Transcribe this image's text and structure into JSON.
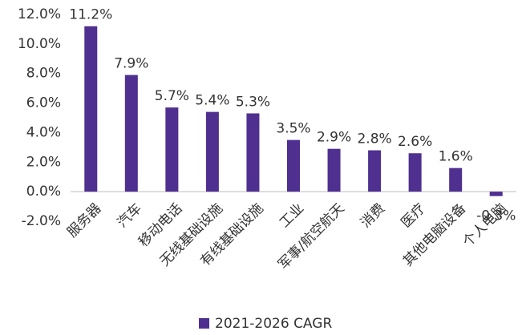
{
  "chart_data": {
    "type": "bar",
    "categories": [
      "服务器",
      "汽车",
      "移动电话",
      "无线基础设施",
      "有线基础设施",
      "工业",
      "军事/航空航天",
      "消费",
      "医疗",
      "其他电脑设备",
      "个人电脑"
    ],
    "series": [
      {
        "name": "2021-2026 CAGR",
        "color": "#4f2f8f",
        "values": [
          11.2,
          7.9,
          5.7,
          5.4,
          5.3,
          3.5,
          2.9,
          2.8,
          2.6,
          1.6,
          -0.3
        ],
        "value_labels": [
          "11.2%",
          "7.9%",
          "5.7%",
          "5.4%",
          "5.3%",
          "3.5%",
          "2.9%",
          "2.8%",
          "2.6%",
          "1.6%",
          "-0.3%"
        ]
      }
    ],
    "ylim": [
      -2,
      12
    ],
    "yticks": [
      {
        "value": -2,
        "label": "-2.0%"
      },
      {
        "value": 0,
        "label": "0.0%"
      },
      {
        "value": 2,
        "label": "2.0%"
      },
      {
        "value": 4,
        "label": "4.0%"
      },
      {
        "value": 6,
        "label": "6.0%"
      },
      {
        "value": 8,
        "label": "8.0%"
      },
      {
        "value": 10,
        "label": "10.0%"
      },
      {
        "value": 12,
        "label": "12.0%"
      }
    ],
    "legend": "bottom"
  }
}
